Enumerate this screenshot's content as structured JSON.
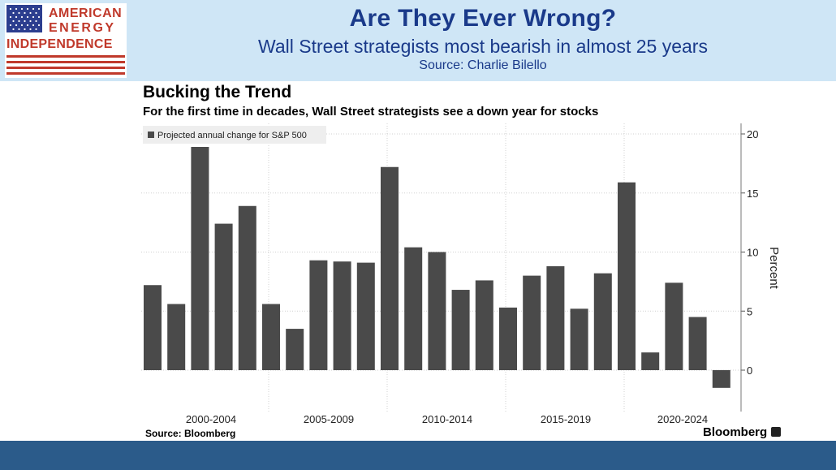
{
  "header": {
    "logo_lines": [
      "AMERICAN",
      "ENERGY",
      "INDEPENDENCE"
    ],
    "title": "Are They Ever Wrong?",
    "subtitle": "Wall Street strategists most bearish in almost 25 years",
    "source": "Source: Charlie Bilello"
  },
  "chart_data": {
    "type": "bar",
    "title": "Bucking the Trend",
    "subtitle": "For the first time in decades, Wall Street strategists see a down year for stocks",
    "legend": "Projected annual change for S&P 500",
    "legend_position": "top-left",
    "ylabel": "Percent",
    "ylim": [
      -3.5,
      21
    ],
    "yticks": [
      0,
      5,
      10,
      15,
      20
    ],
    "y_axis_side": "right",
    "grid": true,
    "bar_color": "#4a4a4a",
    "x_group_labels": [
      "2000-2004",
      "2005-2009",
      "2010-2014",
      "2015-2019",
      "2020-2024"
    ],
    "values": [
      7.2,
      5.6,
      18.9,
      12.4,
      13.9,
      5.6,
      3.5,
      9.3,
      9.2,
      9.1,
      17.2,
      10.4,
      10.0,
      6.8,
      7.6,
      5.3,
      8.0,
      8.8,
      5.2,
      8.2,
      15.9,
      1.5,
      7.4,
      4.5,
      -1.5
    ]
  },
  "footer": {
    "source": "Source: Bloomberg",
    "brand": "Bloomberg"
  },
  "colors": {
    "header_bg": "#cfe6f6",
    "title_color": "#1a3a8a",
    "logo_red": "#c0392b",
    "footer_bg": "#2b5b8a"
  }
}
